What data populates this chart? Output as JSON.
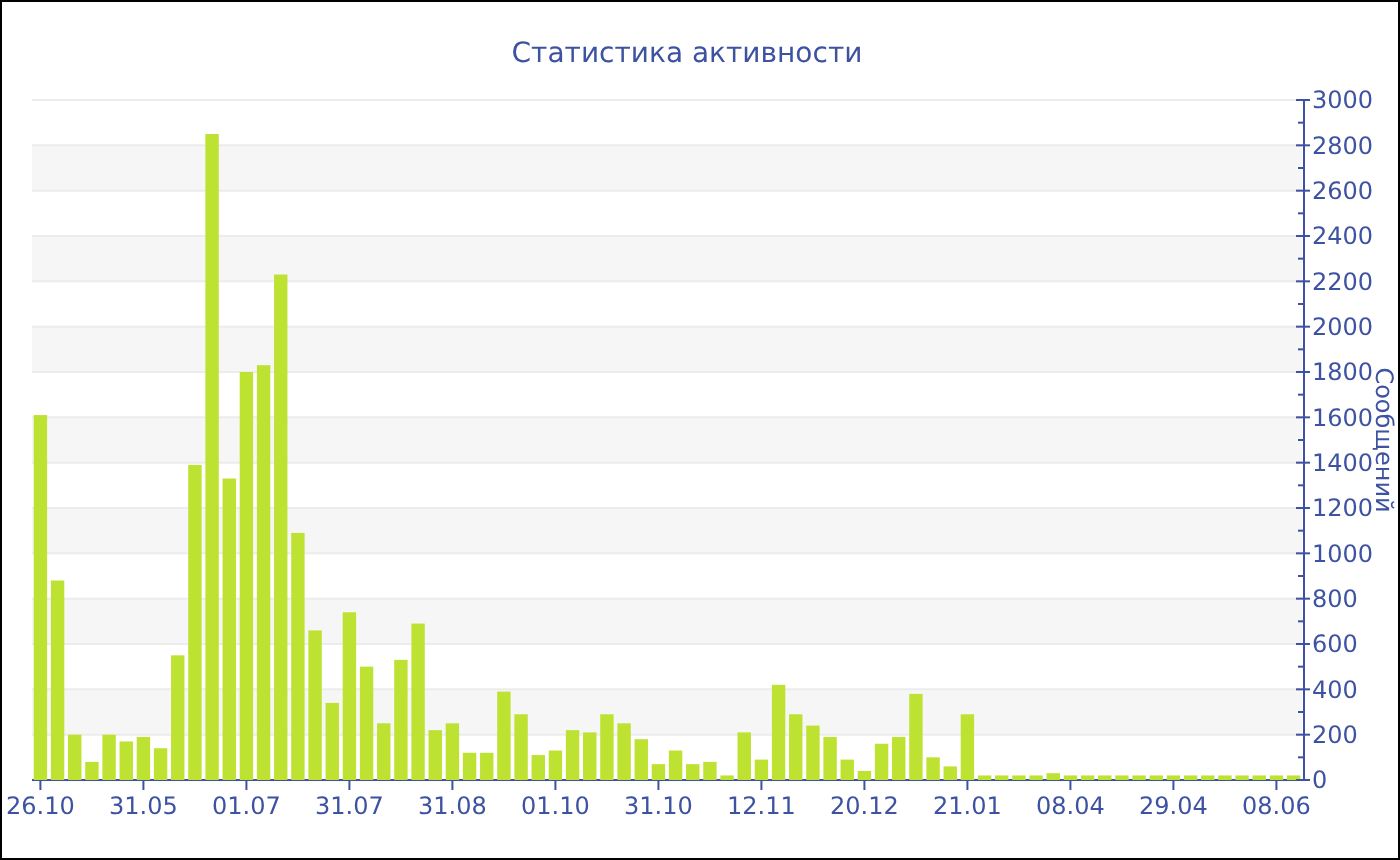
{
  "chart_data": {
    "type": "bar",
    "title": "Статистика активности",
    "ylabel": "Сообщений",
    "categories": [
      "26.10",
      null,
      null,
      null,
      null,
      null,
      "31.05",
      null,
      null,
      null,
      null,
      null,
      "01.07",
      null,
      null,
      null,
      null,
      null,
      "31.07",
      null,
      null,
      null,
      null,
      null,
      "31.08",
      null,
      null,
      null,
      null,
      null,
      "01.10",
      null,
      null,
      null,
      null,
      null,
      "31.10",
      null,
      null,
      null,
      null,
      null,
      "12.11",
      null,
      null,
      null,
      null,
      null,
      "20.12",
      null,
      null,
      null,
      null,
      null,
      "21.01",
      null,
      null,
      null,
      null,
      null,
      "08.04",
      null,
      null,
      null,
      null,
      null,
      "29.04",
      null,
      null,
      null,
      null,
      null,
      "08.06",
      null
    ],
    "values": [
      1610,
      880,
      200,
      80,
      200,
      170,
      190,
      140,
      550,
      1390,
      2850,
      1330,
      1800,
      1830,
      2230,
      1090,
      660,
      340,
      740,
      500,
      250,
      530,
      690,
      220,
      250,
      120,
      120,
      390,
      290,
      110,
      130,
      220,
      210,
      290,
      250,
      180,
      70,
      130,
      70,
      80,
      20,
      210,
      90,
      420,
      290,
      240,
      190,
      90,
      40,
      160,
      190,
      380,
      100,
      60,
      290,
      20,
      20,
      20,
      20,
      30,
      20,
      20,
      20,
      20,
      20,
      20,
      20,
      20,
      20,
      20,
      20,
      20,
      20,
      20
    ],
    "color": "#bde231",
    "ylim": [
      0,
      3000
    ],
    "yticks": [
      0,
      200,
      400,
      600,
      800,
      1000,
      1200,
      1400,
      1600,
      1800,
      2000,
      2200,
      2400,
      2600,
      2800,
      3000
    ],
    "grid": "y"
  }
}
